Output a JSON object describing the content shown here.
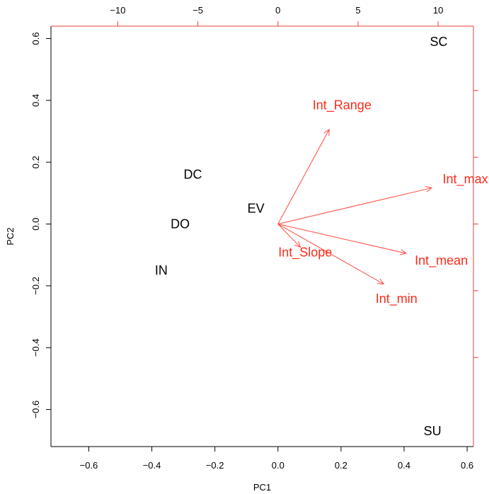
{
  "chart_data": {
    "type": "scatter",
    "subtype": "pca-biplot",
    "title": "",
    "xlabel": "PC1",
    "ylabel": "PC2",
    "xlim": [
      -0.72,
      0.62
    ],
    "ylim": [
      -0.72,
      0.64
    ],
    "xticks": [
      "-0.6",
      "-0.4",
      "-0.2",
      "0.0",
      "0.2",
      "0.4",
      "0.6"
    ],
    "yticks": [
      "-0.6",
      "-0.4",
      "-0.2",
      "0.0",
      "0.2",
      "0.4",
      "0.6"
    ],
    "top_axis": {
      "ticks": [
        "-10",
        "-5",
        "0",
        "5",
        "10"
      ],
      "color": "#e8423a"
    },
    "right_axis": {
      "color": "#e8423a"
    },
    "points": [
      {
        "label": "SC",
        "x": 0.51,
        "y": 0.59
      },
      {
        "label": "DC",
        "x": -0.27,
        "y": 0.16
      },
      {
        "label": "EV",
        "x": -0.07,
        "y": 0.05
      },
      {
        "label": "DO",
        "x": -0.31,
        "y": 0.0
      },
      {
        "label": "IN",
        "x": -0.37,
        "y": -0.15
      },
      {
        "label": "SU",
        "x": 0.49,
        "y": -0.67
      }
    ],
    "variables": [
      {
        "label": "Int_Range",
        "arrow_x": 3.2,
        "arrow_y": 0.306,
        "label_x": 4.0,
        "label_y": 0.385
      },
      {
        "label": "Int_max",
        "arrow_x": 9.6,
        "arrow_y": 0.117,
        "label_x": 11.7,
        "label_y": 0.146
      },
      {
        "label": "Int_mean",
        "arrow_x": 8.0,
        "arrow_y": -0.095,
        "label_x": 10.2,
        "label_y": -0.118
      },
      {
        "label": "Int_Slope",
        "arrow_x": 1.4,
        "arrow_y": -0.075,
        "label_x": 1.7,
        "label_y": -0.092
      },
      {
        "label": "Int_min",
        "arrow_x": 6.6,
        "arrow_y": -0.194,
        "label_x": 7.4,
        "label_y": -0.242
      }
    ],
    "colors": {
      "points": "#000000",
      "variables": "#ff2a1a",
      "arrows": "#ff4a40",
      "secondary_axis": "#e8423a"
    },
    "grid": false
  }
}
